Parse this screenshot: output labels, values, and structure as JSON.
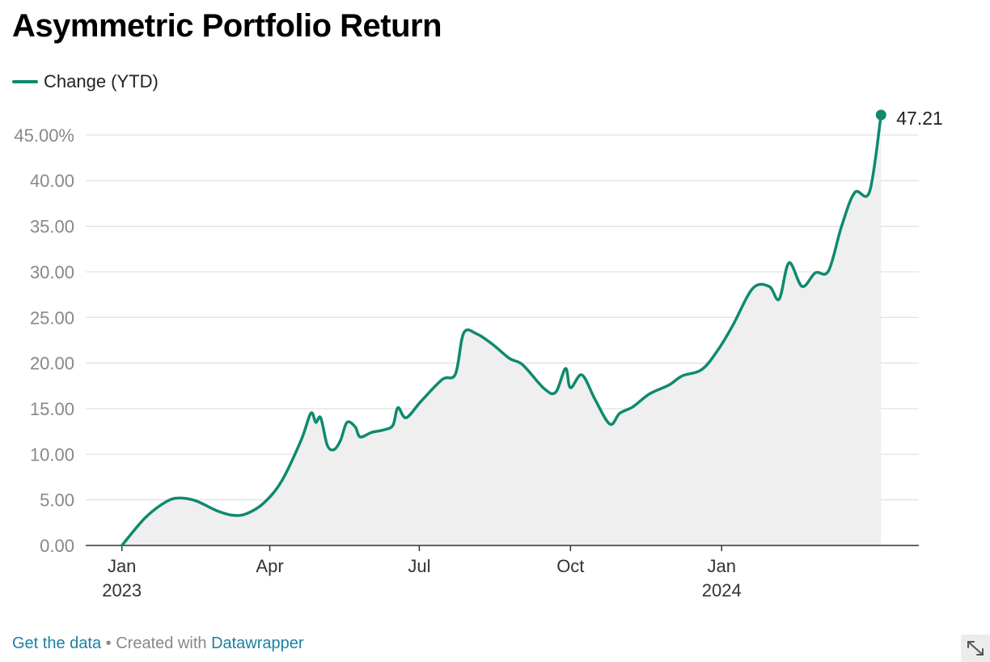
{
  "title": "Asymmetric Portfolio Return",
  "legend": {
    "label": "Change (YTD)"
  },
  "colors": {
    "line": "#0e8a6f",
    "area": "#efefef",
    "grid": "#e0e0e0",
    "axis": "#333333",
    "tick_text": "#888888"
  },
  "chart_data": {
    "type": "area",
    "series": [
      {
        "name": "Change (YTD)",
        "points": [
          [
            "2023-01-01",
            0.0
          ],
          [
            "2023-01-15",
            3.0
          ],
          [
            "2023-01-28",
            4.8
          ],
          [
            "2023-02-05",
            5.2
          ],
          [
            "2023-02-15",
            4.9
          ],
          [
            "2023-02-28",
            3.8
          ],
          [
            "2023-03-10",
            3.3
          ],
          [
            "2023-03-18",
            3.5
          ],
          [
            "2023-03-28",
            4.6
          ],
          [
            "2023-04-08",
            7.0
          ],
          [
            "2023-04-20",
            11.5
          ],
          [
            "2023-04-26",
            14.5
          ],
          [
            "2023-04-29",
            13.5
          ],
          [
            "2023-05-02",
            14.0
          ],
          [
            "2023-05-06",
            11.0
          ],
          [
            "2023-05-10",
            10.5
          ],
          [
            "2023-05-14",
            11.5
          ],
          [
            "2023-05-18",
            13.5
          ],
          [
            "2023-05-23",
            13.0
          ],
          [
            "2023-05-26",
            11.9
          ],
          [
            "2023-06-02",
            12.4
          ],
          [
            "2023-06-10",
            12.7
          ],
          [
            "2023-06-15",
            13.2
          ],
          [
            "2023-06-18",
            15.1
          ],
          [
            "2023-06-23",
            14.0
          ],
          [
            "2023-07-02",
            15.8
          ],
          [
            "2023-07-15",
            18.2
          ],
          [
            "2023-07-23",
            18.8
          ],
          [
            "2023-07-28",
            23.3
          ],
          [
            "2023-08-05",
            23.2
          ],
          [
            "2023-08-15",
            22.0
          ],
          [
            "2023-08-25",
            20.5
          ],
          [
            "2023-09-02",
            19.8
          ],
          [
            "2023-09-15",
            17.2
          ],
          [
            "2023-09-22",
            16.8
          ],
          [
            "2023-09-28",
            19.4
          ],
          [
            "2023-10-01",
            17.3
          ],
          [
            "2023-10-08",
            18.7
          ],
          [
            "2023-10-16",
            16.0
          ],
          [
            "2023-10-25",
            13.3
          ],
          [
            "2023-10-31",
            14.5
          ],
          [
            "2023-11-08",
            15.2
          ],
          [
            "2023-11-18",
            16.6
          ],
          [
            "2023-11-30",
            17.6
          ],
          [
            "2023-12-08",
            18.6
          ],
          [
            "2023-12-20",
            19.3
          ],
          [
            "2023-12-30",
            21.5
          ],
          [
            "2024-01-08",
            24.2
          ],
          [
            "2024-01-20",
            28.2
          ],
          [
            "2024-01-30",
            28.4
          ],
          [
            "2024-02-05",
            27.0
          ],
          [
            "2024-02-11",
            31.0
          ],
          [
            "2024-02-19",
            28.4
          ],
          [
            "2024-02-27",
            29.9
          ],
          [
            "2024-03-06",
            30.1
          ],
          [
            "2024-03-14",
            35.0
          ],
          [
            "2024-03-22",
            38.7
          ],
          [
            "2024-03-31",
            38.8
          ],
          [
            "2024-04-07",
            47.21
          ]
        ]
      }
    ],
    "y_ticks": [
      "45.00%",
      "40.00",
      "35.00",
      "30.00",
      "25.00",
      "20.00",
      "15.00",
      "10.00",
      "5.00",
      "0.00"
    ],
    "x_ticks": [
      {
        "date": "2023-01-01",
        "label": "Jan",
        "sublabel": "2023"
      },
      {
        "date": "2023-04-01",
        "label": "Apr",
        "sublabel": ""
      },
      {
        "date": "2023-07-01",
        "label": "Jul",
        "sublabel": ""
      },
      {
        "date": "2023-10-01",
        "label": "Oct",
        "sublabel": ""
      },
      {
        "date": "2024-01-01",
        "label": "Jan",
        "sublabel": "2024"
      }
    ],
    "ylim": [
      0,
      47.21
    ],
    "xlim": [
      "2022-12-10",
      "2024-04-30"
    ],
    "last_value_label": "47.21",
    "grid": true
  },
  "footer": {
    "get_data": "Get the data",
    "separator": "•",
    "created_with": "Created with",
    "tool": "Datawrapper"
  }
}
